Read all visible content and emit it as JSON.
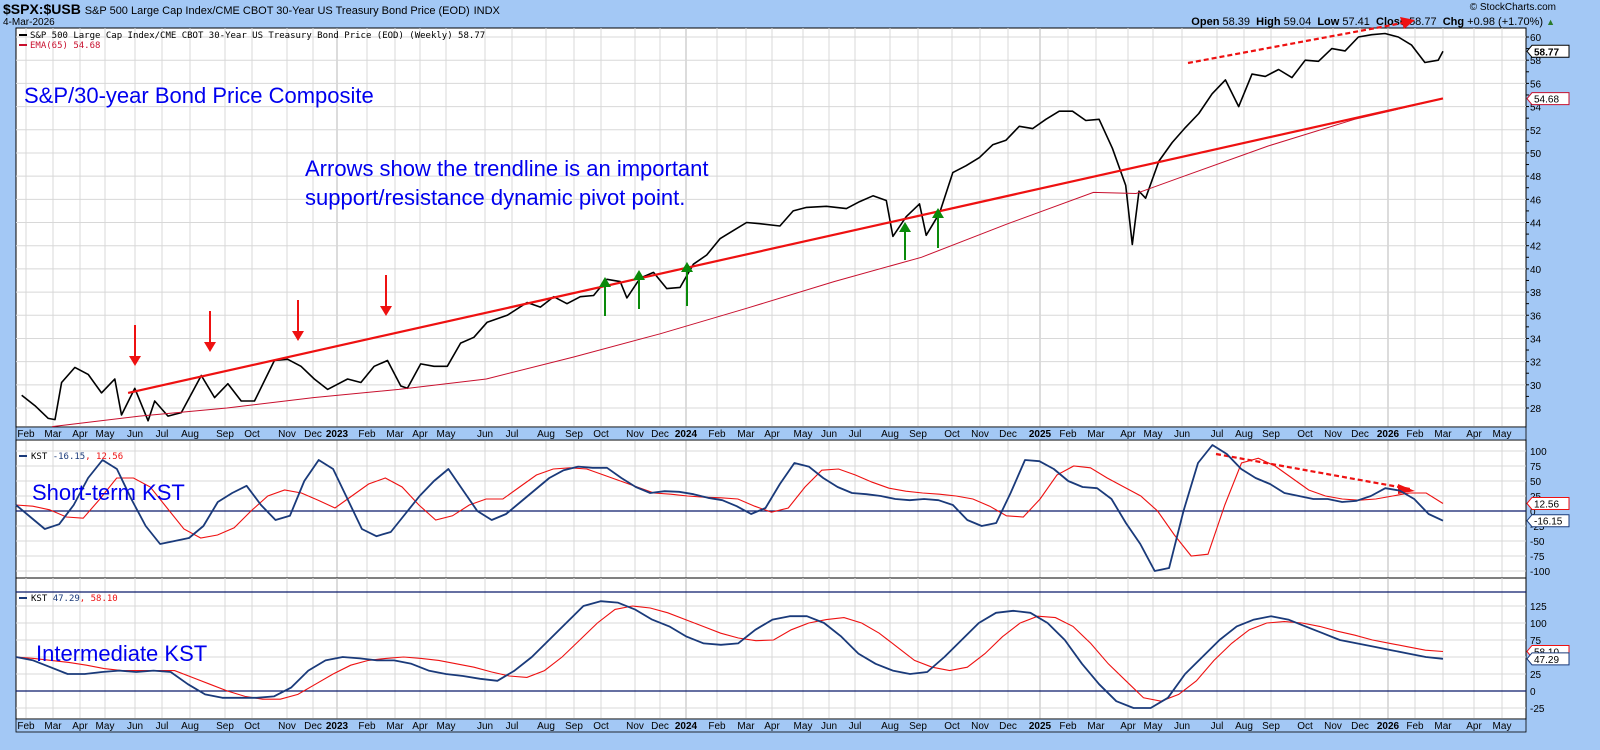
{
  "header": {
    "symbol": "$SPX:$USB",
    "name": "S&P 500 Large Cap Index/CME CBOT 30-Year US Treasury Bond Price (EOD)",
    "exchange": "INDX",
    "date": "4-Mar-2026",
    "copyright": "© StockCharts.com",
    "ohlc": {
      "open_label": "Open",
      "open": "58.39",
      "high_label": "High",
      "high": "59.04",
      "low_label": "Low",
      "low": "57.41",
      "close_label": "Close",
      "close": "58.77",
      "chg_label": "Chg",
      "chg": "+0.98 (+1.70%)",
      "chg_icon": "up-triangle-icon"
    }
  },
  "colors": {
    "background": "#a3c8f5",
    "plot_bg": "#ffffff",
    "grid": "#d8d8d8",
    "price_line": "#000000",
    "ema_line": "#c8102e",
    "trendline": "#ee1111",
    "kst_line": "#1a3a7a",
    "kst_signal": "#ee1111",
    "annotation_text": "#0000ee",
    "support_arrow": "#0a8a0a",
    "resistance_arrow": "#ee1111"
  },
  "chart_data": [
    {
      "type": "line",
      "panel": "price",
      "title": "S&P/30-year Bond Price Composite",
      "legend": [
        "S&P 500 Large Cap Index/CME CBOT 30-Year US Treasury Bond Price (EOD) (Weekly) 58.77",
        "EMA(65) 54.68"
      ],
      "annotation": [
        "Arrows show the trendline is an important",
        "support/resistance dynamic pivot point."
      ],
      "ylim": [
        26.5,
        61
      ],
      "yticks": [
        28,
        30,
        32,
        34,
        36,
        38,
        40,
        42,
        44,
        46,
        48,
        50,
        52,
        54,
        56,
        58,
        60
      ],
      "last_value_labels": {
        "price": "58.77",
        "ema": "54.68"
      },
      "x_labels": [
        "Feb",
        "Mar",
        "Apr",
        "May",
        "Jun",
        "Jul",
        "Aug",
        "Sep",
        "Oct",
        "Nov",
        "Dec",
        "2023",
        "Feb",
        "Mar",
        "Apr",
        "May",
        "Jun",
        "Jul",
        "Aug",
        "Sep",
        "Oct",
        "Nov",
        "Dec",
        "2024",
        "Feb",
        "Mar",
        "Apr",
        "May",
        "Jun",
        "Jul",
        "Aug",
        "Sep",
        "Oct",
        "Nov",
        "Dec",
        "2025",
        "Feb",
        "Mar",
        "Apr",
        "May",
        "Jun",
        "Jul",
        "Aug",
        "Sep",
        "Oct",
        "Nov",
        "Dec",
        "2026",
        "Feb",
        "Mar",
        "Apr",
        "May"
      ],
      "series": [
        {
          "name": "SPX:USB (Weekly)",
          "x": [
            "2022-01-28",
            "2022-02-11",
            "2022-02-25",
            "2022-03-04",
            "2022-03-11",
            "2022-03-25",
            "2022-04-08",
            "2022-04-22",
            "2022-05-06",
            "2022-05-13",
            "2022-05-27",
            "2022-06-10",
            "2022-06-17",
            "2022-07-01",
            "2022-07-15",
            "2022-08-05",
            "2022-08-19",
            "2022-09-02",
            "2022-09-16",
            "2022-09-30",
            "2022-10-21",
            "2022-11-04",
            "2022-11-18",
            "2022-12-02",
            "2022-12-16",
            "2023-01-06",
            "2023-01-20",
            "2023-02-03",
            "2023-02-17",
            "2023-03-03",
            "2023-03-10",
            "2023-03-24",
            "2023-04-07",
            "2023-04-21",
            "2023-05-05",
            "2023-05-19",
            "2023-06-02",
            "2023-06-23",
            "2023-07-14",
            "2023-07-28",
            "2023-08-11",
            "2023-08-25",
            "2023-09-08",
            "2023-09-22",
            "2023-10-06",
            "2023-10-20",
            "2023-10-27",
            "2023-11-10",
            "2023-11-24",
            "2023-12-08",
            "2023-12-22",
            "2024-01-05",
            "2024-01-19",
            "2024-02-02",
            "2024-02-16",
            "2024-03-01",
            "2024-03-15",
            "2024-04-05",
            "2024-04-19",
            "2024-05-03",
            "2024-05-24",
            "2024-06-14",
            "2024-06-28",
            "2024-07-12",
            "2024-07-26",
            "2024-08-02",
            "2024-08-16",
            "2024-08-30",
            "2024-09-06",
            "2024-09-20",
            "2024-10-04",
            "2024-10-18",
            "2024-11-01",
            "2024-11-15",
            "2024-11-29",
            "2024-12-13",
            "2024-12-27",
            "2025-01-10",
            "2025-01-24",
            "2025-02-07",
            "2025-02-21",
            "2025-03-07",
            "2025-03-21",
            "2025-04-04",
            "2025-04-11",
            "2025-04-18",
            "2025-04-25",
            "2025-05-09",
            "2025-05-23",
            "2025-06-06",
            "2025-06-20",
            "2025-07-04",
            "2025-07-18",
            "2025-08-01",
            "2025-08-15",
            "2025-08-29",
            "2025-09-12",
            "2025-09-26",
            "2025-10-10",
            "2025-10-24",
            "2025-11-07",
            "2025-11-21",
            "2025-12-05",
            "2025-12-19",
            "2026-01-02",
            "2026-01-16",
            "2026-01-30",
            "2026-02-13",
            "2026-02-27",
            "2026-03-04"
          ],
          "values": [
            29.1,
            28.2,
            27.1,
            27.0,
            30.2,
            31.5,
            30.9,
            29.3,
            30.5,
            27.4,
            29.7,
            26.9,
            28.6,
            27.3,
            27.6,
            30.8,
            28.9,
            30.1,
            28.6,
            28.6,
            32.1,
            32.2,
            31.6,
            30.5,
            29.6,
            30.5,
            30.2,
            31.6,
            32.1,
            29.9,
            29.7,
            31.8,
            31.6,
            31.6,
            33.6,
            34.1,
            35.4,
            36.0,
            37.1,
            36.7,
            37.6,
            37.0,
            37.6,
            37.7,
            39.1,
            38.9,
            37.5,
            39.2,
            39.7,
            38.3,
            38.4,
            40.4,
            41.2,
            42.6,
            43.3,
            44.0,
            43.9,
            43.7,
            45.0,
            45.3,
            45.4,
            45.2,
            45.8,
            46.3,
            45.9,
            42.8,
            44.5,
            45.6,
            42.9,
            44.8,
            48.3,
            48.9,
            49.6,
            50.7,
            51.1,
            52.3,
            52.1,
            52.9,
            53.6,
            53.6,
            52.8,
            52.9,
            50.4,
            47.2,
            42.1,
            46.7,
            46.1,
            49.3,
            50.9,
            52.2,
            53.4,
            55.1,
            56.3,
            54.0,
            56.8,
            56.6,
            57.2,
            56.5,
            58.0,
            57.9,
            59.0,
            58.8,
            60.0,
            60.2,
            60.3,
            60.0,
            59.3,
            57.8,
            58.0,
            58.77
          ]
        },
        {
          "name": "EMA(65)",
          "x": [
            "2022-03-01",
            "2022-06-01",
            "2022-09-01",
            "2022-12-01",
            "2023-03-01",
            "2023-06-01",
            "2023-09-01",
            "2023-12-01",
            "2024-03-01",
            "2024-06-01",
            "2024-09-01",
            "2024-12-01",
            "2025-03-01",
            "2025-04-15",
            "2025-06-01",
            "2025-09-01",
            "2025-12-01",
            "2026-03-04"
          ],
          "values": [
            26.4,
            27.3,
            28.0,
            28.9,
            29.6,
            30.5,
            32.4,
            34.4,
            36.6,
            38.9,
            41.0,
            43.9,
            46.6,
            46.5,
            47.9,
            50.6,
            52.9,
            54.68
          ]
        },
        {
          "name": "Trendline",
          "x": [
            "2022-05-20",
            "2026-03-04"
          ],
          "values": [
            29.3,
            54.7
          ]
        }
      ],
      "arrows": {
        "resistance_down": [
          "2022-06-10",
          "2022-08-15",
          "2022-11-10",
          "2023-02-15"
        ],
        "support_up": [
          "2023-09-20",
          "2023-10-27",
          "2023-12-20",
          "2024-08-01",
          "2024-09-01"
        ]
      },
      "dashed_trend": {
        "from": "2025-06-15",
        "to": "2026-02-10",
        "note": "rising red dashed line above price highs"
      }
    },
    {
      "type": "line",
      "panel": "short-term KST",
      "title": "Short-term KST",
      "legend": [
        "KST -16.15, 12.56"
      ],
      "ylim": [
        -110,
        115
      ],
      "yticks": [
        100,
        75,
        50,
        25,
        0,
        -25,
        -50,
        -75,
        -100
      ],
      "last_value_labels": {
        "kst": "-16.15",
        "signal": "12.56"
      },
      "series": [
        {
          "name": "KST",
          "values": [
            10,
            -10,
            -30,
            -22,
            10,
            55,
            85,
            70,
            20,
            -25,
            -55,
            -50,
            -45,
            -25,
            15,
            30,
            42,
            10,
            -15,
            -8,
            50,
            85,
            70,
            20,
            -30,
            -42,
            -35,
            -5,
            25,
            50,
            70,
            35,
            0,
            -15,
            -5,
            15,
            35,
            55,
            68,
            74,
            72,
            72,
            55,
            40,
            30,
            33,
            32,
            28,
            22,
            18,
            8,
            -5,
            5,
            45,
            80,
            74,
            55,
            40,
            30,
            28,
            25,
            20,
            18,
            20,
            18,
            10,
            -15,
            -25,
            -20,
            30,
            85,
            83,
            70,
            50,
            40,
            38,
            20,
            -20,
            -55,
            -100,
            -95,
            0,
            80,
            110,
            95,
            70,
            55,
            45,
            30,
            25,
            20,
            20,
            15,
            17,
            25,
            38,
            34,
            20,
            -5,
            -16.15
          ]
        },
        {
          "name": "Signal",
          "values": [
            10,
            8,
            2,
            -10,
            -12,
            20,
            55,
            55,
            40,
            5,
            -30,
            -45,
            -40,
            -28,
            0,
            25,
            35,
            30,
            18,
            5,
            25,
            45,
            55,
            40,
            10,
            -15,
            -8,
            10,
            20,
            20,
            40,
            60,
            70,
            72,
            70,
            60,
            50,
            40,
            30,
            28,
            25,
            23,
            22,
            20,
            8,
            -2,
            5,
            40,
            68,
            70,
            60,
            48,
            38,
            33,
            30,
            28,
            25,
            20,
            8,
            -8,
            -10,
            20,
            60,
            75,
            72,
            55,
            40,
            25,
            0,
            -40,
            -75,
            -72,
            10,
            80,
            88,
            75,
            55,
            35,
            25,
            20,
            18,
            20,
            25,
            30,
            30,
            12.56
          ]
        }
      ]
    },
    {
      "type": "line",
      "panel": "intermediate KST",
      "title": "Intermediate KST",
      "legend": [
        "KST 47.29, 58.10"
      ],
      "ylim": [
        -30,
        150
      ],
      "yticks": [
        125,
        100,
        75,
        50,
        25,
        0,
        -25
      ],
      "last_value_labels": {
        "kst": "47.29",
        "signal": "58.10"
      },
      "series": [
        {
          "name": "KST",
          "values": [
            50,
            45,
            35,
            25,
            25,
            28,
            30,
            28,
            30,
            28,
            10,
            -5,
            -10,
            -10,
            -10,
            -8,
            5,
            30,
            45,
            50,
            48,
            45,
            45,
            40,
            30,
            25,
            22,
            18,
            15,
            30,
            50,
            75,
            100,
            125,
            132,
            130,
            120,
            105,
            95,
            80,
            70,
            68,
            70,
            90,
            105,
            110,
            110,
            100,
            80,
            55,
            40,
            30,
            25,
            28,
            50,
            75,
            100,
            115,
            118,
            115,
            100,
            75,
            40,
            10,
            -15,
            -25,
            -25,
            -10,
            25,
            50,
            75,
            95,
            105,
            110,
            105,
            95,
            85,
            75,
            70,
            65,
            60,
            55,
            50,
            47.29
          ]
        },
        {
          "name": "Signal",
          "values": [
            50,
            48,
            45,
            42,
            38,
            33,
            30,
            30,
            30,
            30,
            20,
            10,
            0,
            -8,
            -12,
            -12,
            -5,
            10,
            25,
            38,
            45,
            48,
            50,
            48,
            45,
            40,
            35,
            28,
            22,
            20,
            30,
            50,
            75,
            100,
            120,
            125,
            122,
            115,
            105,
            95,
            85,
            78,
            74,
            75,
            90,
            100,
            105,
            108,
            100,
            85,
            65,
            45,
            35,
            30,
            35,
            55,
            80,
            100,
            110,
            108,
            95,
            70,
            40,
            15,
            -10,
            -15,
            -5,
            15,
            45,
            70,
            90,
            100,
            102,
            100,
            95,
            88,
            82,
            75,
            70,
            65,
            60,
            58.1
          ]
        }
      ]
    }
  ],
  "panels": {
    "price": {
      "annotation_title": "S&P/30-year Bond Price Composite"
    },
    "short_kst": {
      "annotation_title": "Short-term KST"
    },
    "int_kst": {
      "annotation_title": "Intermediate KST"
    }
  }
}
